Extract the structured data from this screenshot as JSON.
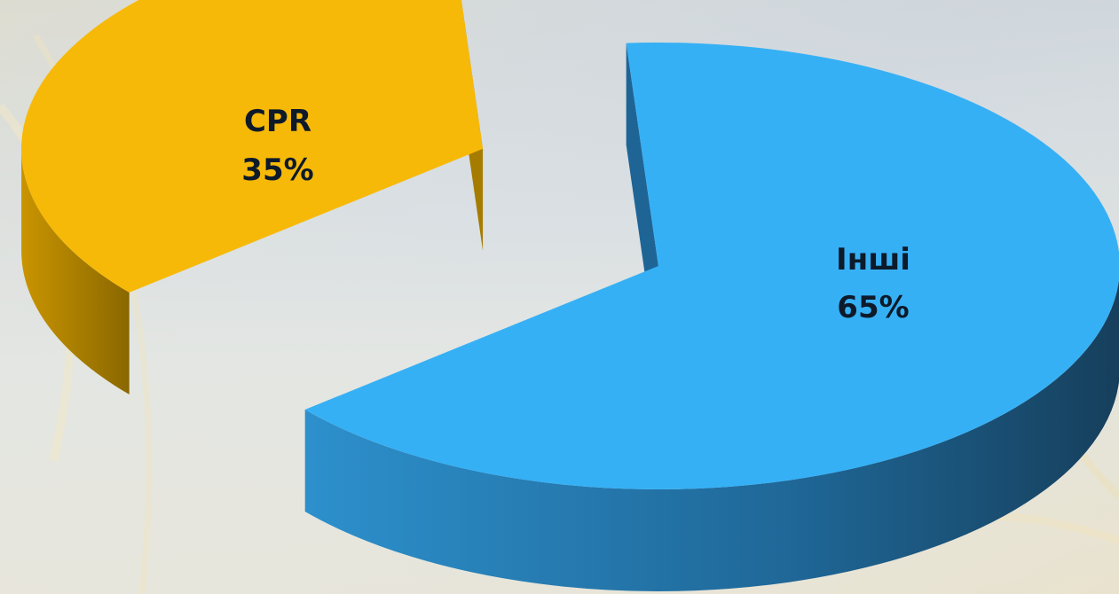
{
  "chart_data": {
    "type": "pie",
    "categories": [
      "CPR",
      "Інші"
    ],
    "values": [
      35,
      65
    ],
    "labels": [
      "35%",
      "65%"
    ],
    "colors": {
      "CPR": {
        "top": "#f7b908",
        "side": "#8f6c00"
      },
      "Інші": {
        "top": "#35aef3",
        "side": "#1d5c88"
      }
    },
    "style": "3d-exploded",
    "title": "",
    "legend": "none"
  }
}
